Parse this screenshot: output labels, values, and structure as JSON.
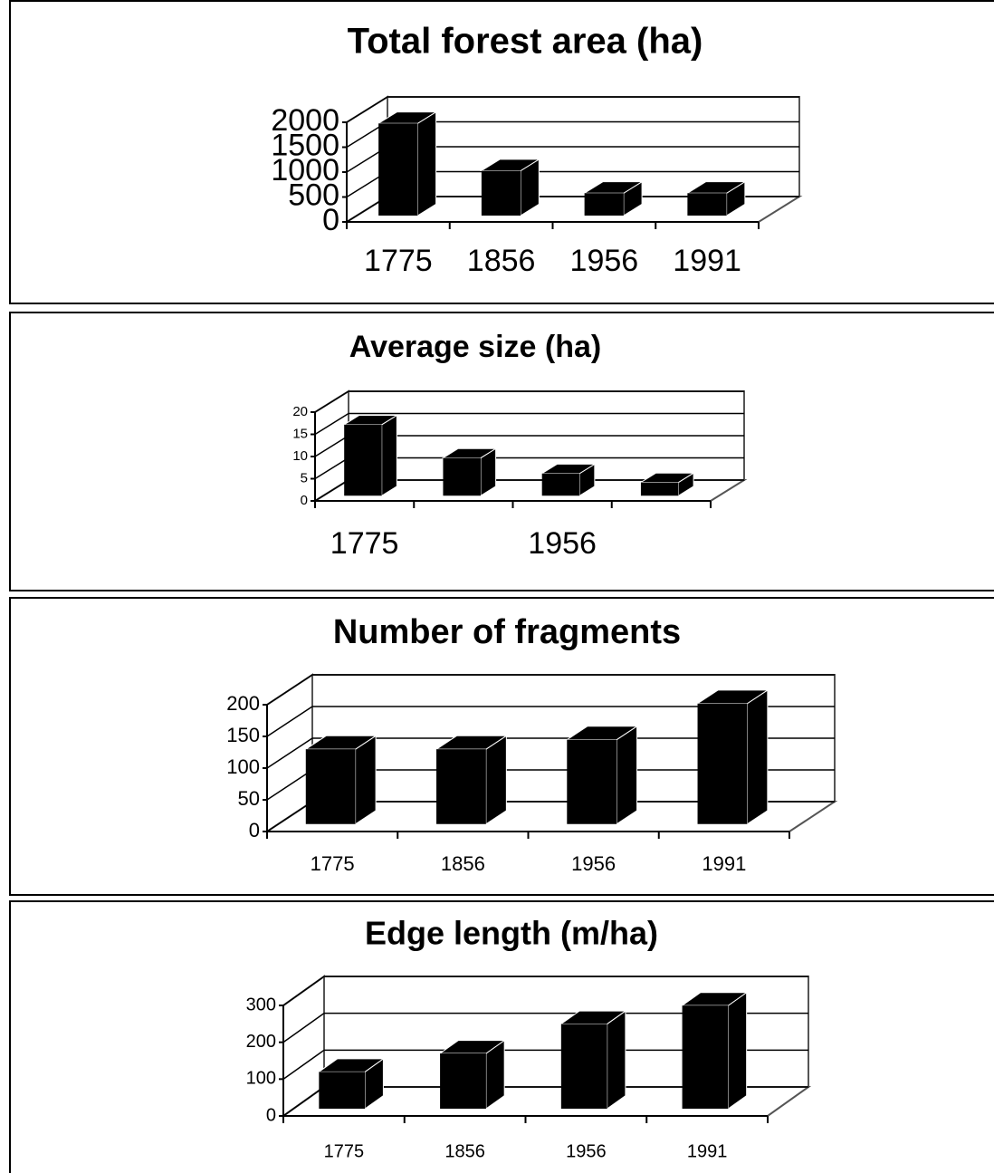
{
  "chart_data": [
    {
      "type": "bar",
      "title": "Total forest area (ha)",
      "categories": [
        "1775",
        "1856",
        "1956",
        "1991"
      ],
      "values": [
        1850,
        900,
        450,
        450
      ],
      "color": "#000000",
      "ylim": [
        0,
        2000
      ],
      "yticks": [
        0,
        500,
        1000,
        1500,
        2000
      ],
      "grid": true
    },
    {
      "type": "bar",
      "title": "Average size (ha)",
      "categories": [
        "1775",
        null,
        "1956",
        null
      ],
      "values": [
        16,
        8.5,
        5,
        3
      ],
      "color": "#000000",
      "ylim": [
        0,
        20
      ],
      "yticks": [
        0,
        5,
        10,
        15,
        20
      ],
      "grid": true
    },
    {
      "type": "bar",
      "title": "Number of fragments",
      "categories": [
        "1775",
        "1856",
        "1956",
        "1991"
      ],
      "values": [
        118,
        118,
        133,
        190
      ],
      "color": "#000000",
      "ylim": [
        0,
        200
      ],
      "yticks": [
        0,
        50,
        100,
        150,
        200
      ],
      "grid": true
    },
    {
      "type": "bar",
      "title": "Edge length (m/ha)",
      "categories": [
        "1775",
        "1856",
        "1956",
        "1991"
      ],
      "values": [
        100,
        150,
        230,
        280
      ],
      "color": "#000000",
      "ylim": [
        0,
        300
      ],
      "yticks": [
        0,
        100,
        200,
        300
      ],
      "grid": true
    }
  ]
}
